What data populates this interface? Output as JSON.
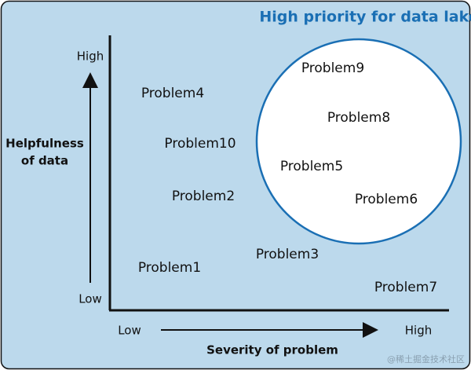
{
  "title": "High priority for data lake",
  "y_axis": {
    "label_lines": [
      "Helpfulness",
      "of data"
    ],
    "high": "High",
    "low": "Low"
  },
  "x_axis": {
    "label": "Severity of problem",
    "low": "Low",
    "high": "High"
  },
  "nodes": [
    {
      "label": "Problem9"
    },
    {
      "label": "Problem8"
    },
    {
      "label": "Problem5"
    },
    {
      "label": "Problem6"
    },
    {
      "label": "Problem4"
    },
    {
      "label": "Problem10"
    },
    {
      "label": "Problem2"
    },
    {
      "label": "Problem3"
    },
    {
      "label": "Problem1"
    },
    {
      "label": "Problem7"
    }
  ],
  "watermark": "@稀土掘金技术社区"
}
